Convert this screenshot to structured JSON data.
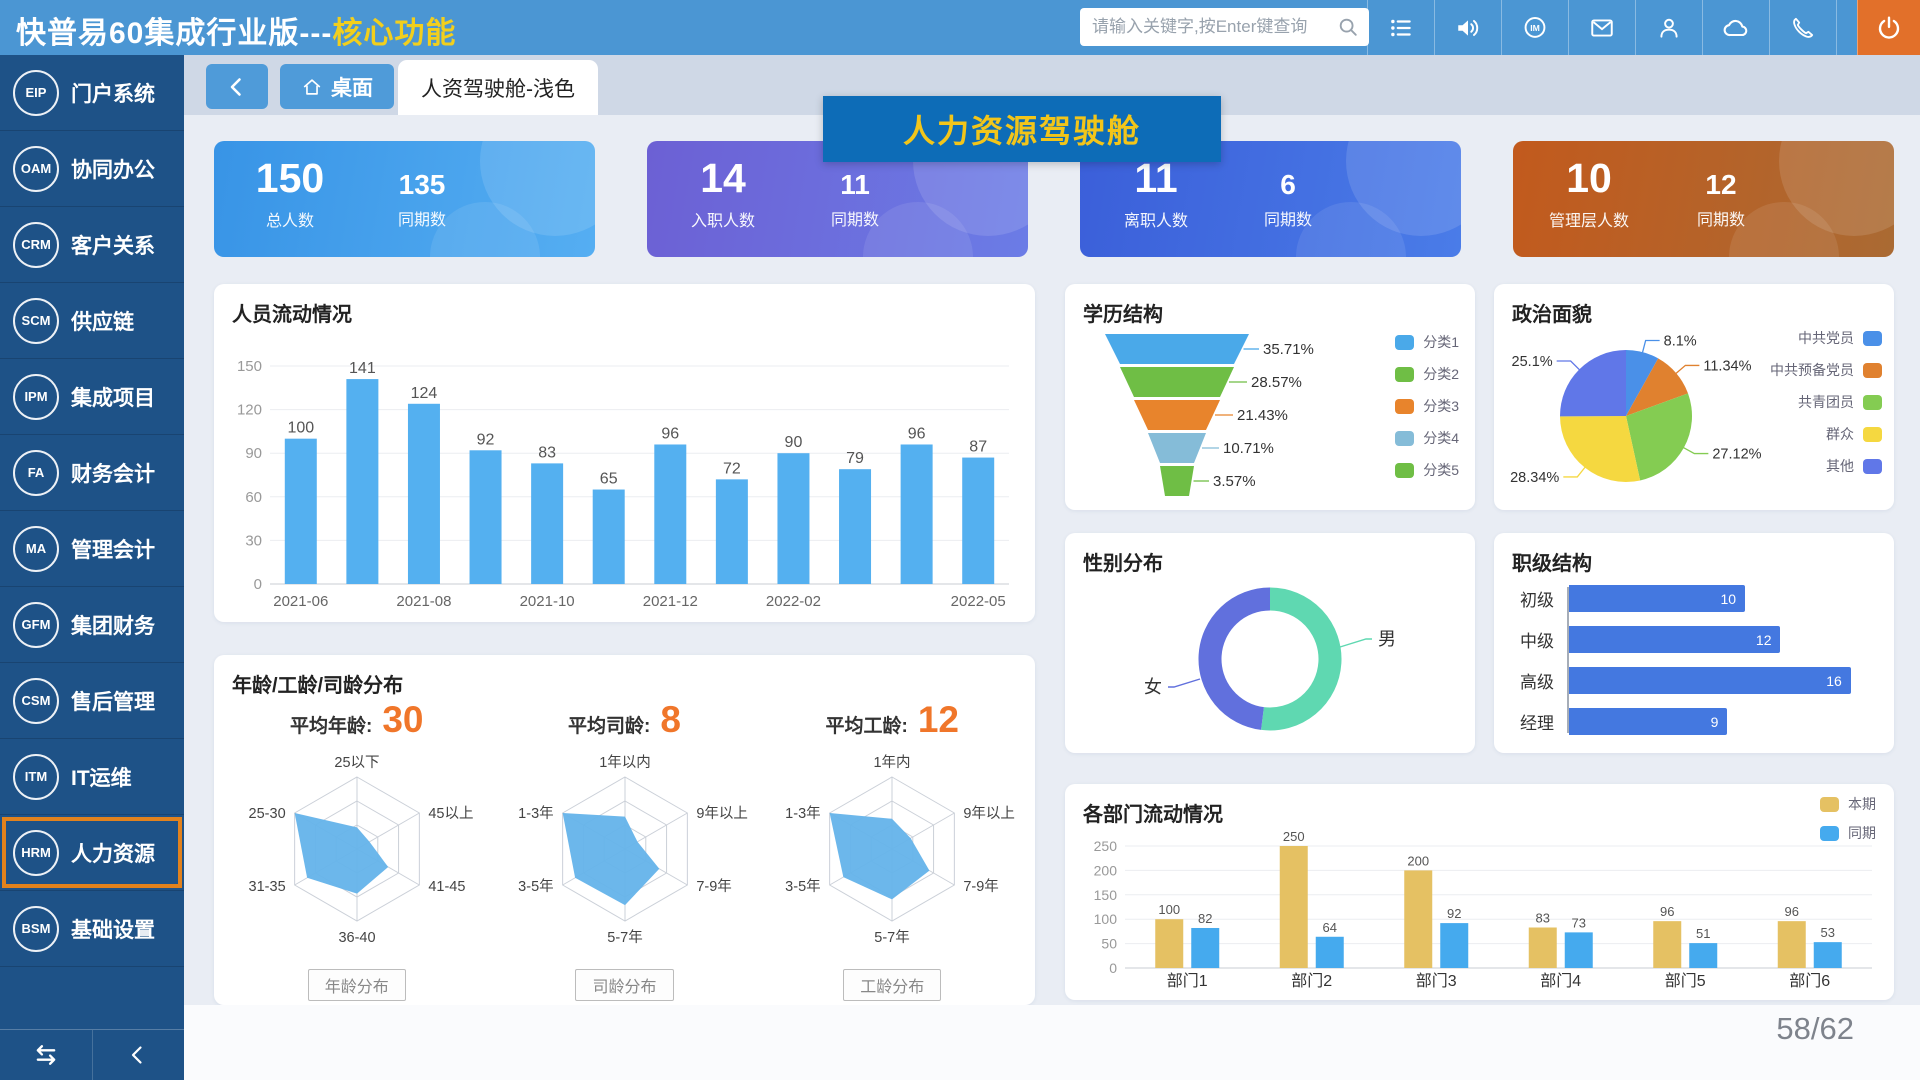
{
  "header": {
    "title_white": "快普易60集成行业版---",
    "title_yellow": "核心功能",
    "search_placeholder": "请输入关键字,按Enter键查询",
    "icons": [
      "list-icon",
      "speaker-icon",
      "im-icon",
      "mail-icon",
      "user-icon",
      "cloud-icon",
      "phone-icon",
      "power-icon"
    ]
  },
  "sidebar": {
    "items": [
      {
        "abbr": "EIP",
        "label": "门户系统",
        "active": false
      },
      {
        "abbr": "OAM",
        "label": "协同办公",
        "active": false
      },
      {
        "abbr": "CRM",
        "label": "客户关系",
        "active": false
      },
      {
        "abbr": "SCM",
        "label": "供应链",
        "active": false
      },
      {
        "abbr": "IPM",
        "label": "集成项目",
        "active": false
      },
      {
        "abbr": "FA",
        "label": "财务会计",
        "active": false
      },
      {
        "abbr": "MA",
        "label": "管理会计",
        "active": false
      },
      {
        "abbr": "GFM",
        "label": "集团财务",
        "active": false
      },
      {
        "abbr": "CSM",
        "label": "售后管理",
        "active": false
      },
      {
        "abbr": "ITM",
        "label": "IT运维",
        "active": false
      },
      {
        "abbr": "HRM",
        "label": "人力资源",
        "active": true
      },
      {
        "abbr": "BSM",
        "label": "基础设置",
        "active": false
      }
    ],
    "footer_icons": [
      "swap-icon",
      "collapse-icon"
    ]
  },
  "tabs": {
    "home_label": "桌面",
    "active_tab": "人资驾驶舱-浅色"
  },
  "banner": {
    "title": "人力资源驾驶舱"
  },
  "accent_colors": {
    "topbar": "#4b96d3",
    "sidebar": "#1e5287",
    "highlight": "#e2821d",
    "banner_bg": "#0d6cb7",
    "banner_text": "#f2c51a"
  },
  "stat_cards": [
    {
      "value": "150",
      "label": "总人数",
      "value2": "135",
      "label2": "同期数",
      "gradient": [
        "#3894e6",
        "#55aef2"
      ]
    },
    {
      "value": "14",
      "label": "入职人数",
      "value2": "11",
      "label2": "同期数",
      "gradient": [
        "#6c60d4",
        "#6b7ce6"
      ]
    },
    {
      "value": "11",
      "label": "离职人数",
      "value2": "6",
      "label2": "同期数",
      "gradient": [
        "#3b5fd9",
        "#4a7ce8"
      ]
    },
    {
      "value": "10",
      "label": "管理层人数",
      "value2": "12",
      "label2": "同期数",
      "gradient": [
        "#c25a1d",
        "#aa6a33"
      ]
    }
  ],
  "page_indicator": "58/62",
  "chart_data": [
    {
      "id": "flow",
      "type": "bar",
      "title": "人员流动情况",
      "x_labels": [
        "2021-06",
        "",
        "2021-08",
        "",
        "2021-10",
        "",
        "2021-12",
        "",
        "2022-02",
        "",
        "",
        "2022-05"
      ],
      "values": [
        100,
        141,
        124,
        92,
        83,
        65,
        96,
        72,
        90,
        79,
        96,
        87
      ],
      "yticks": [
        0,
        30,
        60,
        90,
        120,
        150
      ],
      "ylim": [
        0,
        150
      ],
      "bar_color": "#54b0f0"
    },
    {
      "id": "education",
      "type": "funnel",
      "title": "学历结构",
      "items": [
        {
          "label": "分类1",
          "pct": "35.71%",
          "color": "#4aa9e9"
        },
        {
          "label": "分类2",
          "pct": "28.57%",
          "color": "#6fbe45"
        },
        {
          "label": "分类3",
          "pct": "21.43%",
          "color": "#e8842c"
        },
        {
          "label": "分类4",
          "pct": "10.71%",
          "color": "#85bcd8"
        },
        {
          "label": "分类5",
          "pct": "3.57%",
          "color": "#6fbe45"
        }
      ]
    },
    {
      "id": "political",
      "type": "pie",
      "title": "政治面貌",
      "items": [
        {
          "label": "中共党员",
          "pct": "8.1%",
          "value": 8.1,
          "color": "#4a90e8"
        },
        {
          "label": "中共预备党员",
          "pct": "11.34%",
          "value": 11.34,
          "color": "#e0812f"
        },
        {
          "label": "共青团员",
          "pct": "27.12%",
          "value": 27.12,
          "color": "#84cc52"
        },
        {
          "label": "群众",
          "pct": "28.34%",
          "value": 28.34,
          "color": "#f5d840"
        },
        {
          "label": "其他",
          "pct": "25.1%",
          "value": 25.1,
          "color": "#6077e8"
        }
      ]
    },
    {
      "id": "gender",
      "type": "donut",
      "title": "性别分布",
      "items": [
        {
          "label": "男",
          "value": 52,
          "color": "#5fd8b1"
        },
        {
          "label": "女",
          "value": 48,
          "color": "#6170dd"
        }
      ]
    },
    {
      "id": "rank",
      "type": "hbar",
      "title": "职级结构",
      "categories": [
        "初级",
        "中级",
        "高级",
        "经理"
      ],
      "values": [
        10,
        12,
        16,
        9
      ],
      "xmax": 17.2,
      "bar_color": "#4478e0"
    },
    {
      "id": "age",
      "type": "radar-group",
      "title": "年龄/工龄/司龄分布",
      "fill_color": "#64b3ea",
      "avg_color": "#f0762a",
      "radars": [
        {
          "avg_label": "平均年龄:",
          "avg_value": "30",
          "axes": [
            "25以下",
            "45以上",
            "41-45",
            "36-40",
            "31-35",
            "25-30"
          ],
          "values": [
            0.3,
            0.2,
            0.5,
            0.62,
            0.8,
            1.0
          ],
          "button": "年龄分布"
        },
        {
          "avg_label": "平均司龄:",
          "avg_value": "8",
          "axes": [
            "1年以内",
            "9年以上",
            "7-9年",
            "5-7年",
            "3-5年",
            "1-3年"
          ],
          "values": [
            0.45,
            0.2,
            0.55,
            0.78,
            0.8,
            1.0
          ],
          "button": "司龄分布"
        },
        {
          "avg_label": "平均工龄:",
          "avg_value": "12",
          "axes": [
            "1年内",
            "9年以上",
            "7-9年",
            "5-7年",
            "3-5年",
            "1-3年"
          ],
          "values": [
            0.42,
            0.3,
            0.6,
            0.7,
            0.78,
            1.0
          ],
          "button": "工龄分布"
        }
      ]
    },
    {
      "id": "dept",
      "type": "grouped-bar",
      "title": "各部门流动情况",
      "categories": [
        "部门1",
        "部门2",
        "部门3",
        "部门4",
        "部门5",
        "部门6"
      ],
      "series": [
        {
          "name": "本期",
          "color": "#e5c163",
          "values": [
            100,
            250,
            200,
            83,
            96,
            96
          ]
        },
        {
          "name": "同期",
          "color": "#45aaee",
          "values": [
            82,
            64,
            92,
            73,
            51,
            53
          ]
        }
      ],
      "yticks": [
        0,
        50,
        100,
        150,
        200,
        250
      ],
      "ylim": [
        0,
        250
      ]
    }
  ]
}
